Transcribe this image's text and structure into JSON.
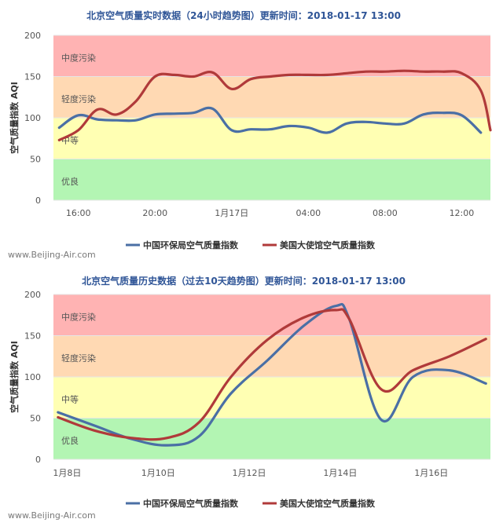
{
  "legend": {
    "china": "中国环保局空气质量指数",
    "us": "美国大使馆空气质量指数"
  },
  "watermark": "www.Beijing-Air.com",
  "colors": {
    "china": "#4a6fa5",
    "us": "#b03a3a",
    "band_good": "#b3f5b3",
    "band_moderate": "#ffffb3",
    "band_light": "#ffd9b3",
    "band_medium": "#ffb3b3"
  },
  "chart_data": [
    {
      "type": "line",
      "title": "北京空气质量实时数据（24小时趋势图）更新时间：2018-01-17  13:00",
      "ylabel": "空气质量指数 AQI",
      "ylim": [
        0,
        200
      ],
      "yticks": [
        0,
        50,
        100,
        150,
        200
      ],
      "xlim": [
        14.7,
        37.5
      ],
      "xticks": [
        {
          "x": 16,
          "label": "16:00"
        },
        {
          "x": 20,
          "label": "20:00"
        },
        {
          "x": 24,
          "label": "1月17日"
        },
        {
          "x": 28,
          "label": "04:00"
        },
        {
          "x": 32,
          "label": "08:00"
        },
        {
          "x": 36,
          "label": "12:00"
        }
      ],
      "bands": [
        {
          "from": 0,
          "to": 50,
          "label": "优良",
          "color": "band_good"
        },
        {
          "from": 50,
          "to": 100,
          "label": "中等",
          "color": "band_moderate"
        },
        {
          "from": 100,
          "to": 150,
          "label": "轻度污染",
          "color": "band_light"
        },
        {
          "from": 150,
          "to": 200,
          "label": "中度污染",
          "color": "band_medium"
        }
      ],
      "series": [
        {
          "name": "中国环保局空气质量指数",
          "color": "china",
          "points": [
            [
              15,
              88
            ],
            [
              16,
              103
            ],
            [
              17,
              98
            ],
            [
              18,
              97
            ],
            [
              19,
              97
            ],
            [
              20,
              104
            ],
            [
              21,
              105
            ],
            [
              22,
              106
            ],
            [
              23,
              111
            ],
            [
              24,
              85
            ],
            [
              25,
              86
            ],
            [
              26,
              86
            ],
            [
              27,
              90
            ],
            [
              28,
              88
            ],
            [
              29,
              82
            ],
            [
              30,
              93
            ],
            [
              31,
              95
            ],
            [
              32,
              93
            ],
            [
              33,
              93
            ],
            [
              34,
              104
            ],
            [
              35,
              106
            ],
            [
              36,
              103
            ],
            [
              37,
              82
            ]
          ]
        },
        {
          "name": "美国大使馆空气质量指数",
          "color": "us",
          "points": [
            [
              15,
              73
            ],
            [
              16,
              85
            ],
            [
              17,
              110
            ],
            [
              18,
              104
            ],
            [
              19,
              120
            ],
            [
              20,
              150
            ],
            [
              21,
              152
            ],
            [
              22,
              150
            ],
            [
              23,
              155
            ],
            [
              24,
              135
            ],
            [
              25,
              147
            ],
            [
              26,
              150
            ],
            [
              27,
              152
            ],
            [
              28,
              152
            ],
            [
              29,
              152
            ],
            [
              30,
              154
            ],
            [
              31,
              156
            ],
            [
              32,
              156
            ],
            [
              33,
              157
            ],
            [
              34,
              156
            ],
            [
              35,
              156
            ],
            [
              36,
              154
            ],
            [
              37,
              133
            ],
            [
              37.5,
              85
            ]
          ]
        }
      ]
    },
    {
      "type": "line",
      "title": "北京空气质量历史数据（过去10天趋势图）更新时间：2018-01-17  13:00",
      "ylabel": "空气质量指数 AQI",
      "ylim": [
        0,
        200
      ],
      "yticks": [
        0,
        50,
        100,
        150,
        200
      ],
      "xlim": [
        7.7,
        17.3
      ],
      "xticks": [
        {
          "x": 8,
          "label": "1月8日"
        },
        {
          "x": 10,
          "label": "1月10日"
        },
        {
          "x": 12,
          "label": "1月12日"
        },
        {
          "x": 14,
          "label": "1月14日"
        },
        {
          "x": 16,
          "label": "1月16日"
        }
      ],
      "bands": [
        {
          "from": 0,
          "to": 50,
          "label": "优良",
          "color": "band_good"
        },
        {
          "from": 50,
          "to": 100,
          "label": "中等",
          "color": "band_moderate"
        },
        {
          "from": 100,
          "to": 150,
          "label": "轻度污染",
          "color": "band_light"
        },
        {
          "from": 150,
          "to": 200,
          "label": "中度污染",
          "color": "band_medium"
        }
      ],
      "series": [
        {
          "name": "中国环保局空气质量指数",
          "color": "china",
          "points": [
            [
              7.8,
              57
            ],
            [
              8.6,
              41
            ],
            [
              9.4,
              25
            ],
            [
              10.2,
              17
            ],
            [
              10.9,
              28
            ],
            [
              11.6,
              80
            ],
            [
              12.4,
              120
            ],
            [
              13.2,
              162
            ],
            [
              13.9,
              186
            ],
            [
              14.2,
              170
            ],
            [
              14.9,
              48
            ],
            [
              15.6,
              100
            ],
            [
              16.4,
              108
            ],
            [
              17.2,
              92
            ]
          ]
        },
        {
          "name": "美国大使馆空气质量指数",
          "color": "us",
          "points": [
            [
              7.8,
              51
            ],
            [
              8.6,
              35
            ],
            [
              9.4,
              26
            ],
            [
              10.2,
              26
            ],
            [
              10.9,
              45
            ],
            [
              11.6,
              100
            ],
            [
              12.4,
              145
            ],
            [
              13.2,
              172
            ],
            [
              13.9,
              181
            ],
            [
              14.2,
              170
            ],
            [
              14.9,
              85
            ],
            [
              15.6,
              108
            ],
            [
              16.4,
              125
            ],
            [
              17.2,
              146
            ]
          ]
        }
      ]
    }
  ]
}
